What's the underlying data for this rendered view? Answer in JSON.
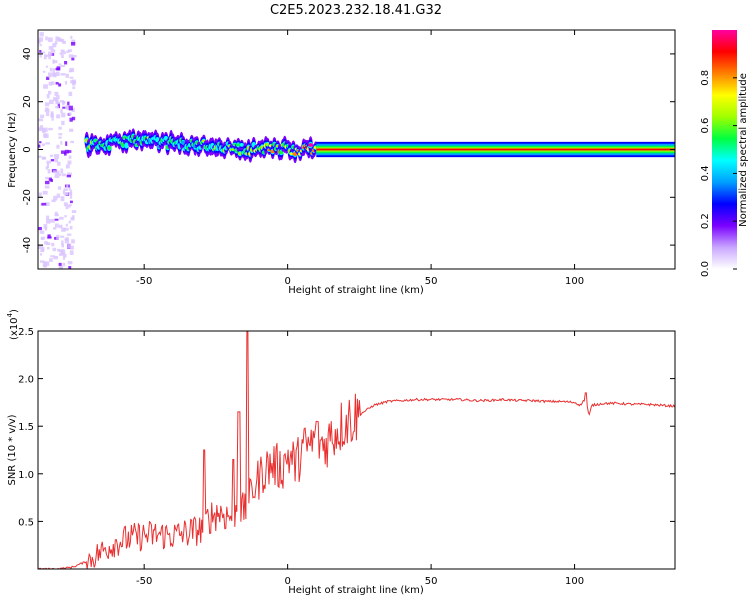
{
  "figure_title": "C2E5.2023.232.18.41.G32",
  "chart_data": [
    {
      "type": "heatmap",
      "name": "spectrogram",
      "xlabel": "Height of straight line (km)",
      "ylabel": "Frequency (Hz)",
      "xlim": [
        -87,
        135
      ],
      "ylim": [
        -50,
        50
      ],
      "xticks": [
        -50,
        0,
        50,
        100
      ],
      "yticks": [
        -40,
        -20,
        0,
        20,
        40
      ],
      "colorbar": {
        "label": "Normalized spectral amplitude",
        "range": [
          0,
          1
        ],
        "ticks": [
          "0.0",
          "0.2",
          "0.4",
          "0.6",
          "0.8"
        ],
        "colormap": [
          "#ffffff",
          "#c9a6ff",
          "#7a00ff",
          "#0000ff",
          "#00a0ff",
          "#00ffff",
          "#00ff40",
          "#a0ff00",
          "#ffff00",
          "#ff8000",
          "#ff0000",
          "#ff00a0"
        ]
      },
      "ridge": [
        {
          "x": -62,
          "f": 2,
          "amp": 0.6
        },
        {
          "x": -55,
          "f": 4,
          "amp": 0.55
        },
        {
          "x": -45,
          "f": 3,
          "amp": 0.55
        },
        {
          "x": -35,
          "f": 2,
          "amp": 0.55
        },
        {
          "x": -25,
          "f": 1.5,
          "amp": 0.6
        },
        {
          "x": -15,
          "f": 0,
          "amp": 0.6
        },
        {
          "x": -5,
          "f": 0.5,
          "amp": 0.75
        },
        {
          "x": 5,
          "f": 0,
          "amp": 0.8
        },
        {
          "x": 10,
          "f": 0,
          "amp": 0.95
        },
        {
          "x": 135,
          "f": 0,
          "amp": 0.95
        }
      ],
      "grid": false
    },
    {
      "type": "line",
      "name": "snr",
      "xlabel": "Height of straight line (km)",
      "ylabel": "SNR (10 * v/v)",
      "y_multiplier_label": "(x10",
      "y_multiplier_exp": "4",
      "y_multiplier_close": ")",
      "xlim": [
        -87,
        135
      ],
      "ylim": [
        0,
        2.5
      ],
      "xticks": [
        -50,
        0,
        50,
        100
      ],
      "yticks": [
        0.5,
        1.0,
        1.5,
        2.0,
        2.5
      ],
      "line_color": "#e83030",
      "x": [
        -87,
        -80,
        -75,
        -70,
        -65,
        -60,
        -55,
        -50,
        -45,
        -40,
        -35,
        -30,
        -27,
        -24,
        -20,
        -17,
        -15,
        -13,
        -12,
        -10,
        -8,
        -5,
        -2,
        0,
        3,
        5,
        8,
        10,
        13,
        15,
        18,
        20,
        23,
        25,
        28,
        30,
        35,
        40,
        45,
        50,
        55,
        60,
        65,
        70,
        75,
        80,
        85,
        90,
        95,
        100,
        102,
        104,
        105,
        106,
        110,
        115,
        120,
        125,
        130,
        135
      ],
      "y": [
        0.0,
        0.0,
        0.02,
        0.08,
        0.18,
        0.28,
        0.32,
        0.35,
        0.36,
        0.35,
        0.38,
        0.42,
        0.55,
        0.6,
        0.55,
        0.65,
        0.6,
        0.75,
        0.85,
        0.95,
        1.05,
        1.1,
        1.05,
        1.2,
        1.1,
        1.25,
        1.3,
        1.35,
        1.3,
        1.4,
        1.48,
        1.55,
        1.6,
        1.62,
        1.68,
        1.72,
        1.76,
        1.77,
        1.78,
        1.78,
        1.78,
        1.78,
        1.77,
        1.77,
        1.78,
        1.77,
        1.77,
        1.76,
        1.76,
        1.75,
        1.72,
        1.8,
        1.6,
        1.72,
        1.74,
        1.74,
        1.73,
        1.73,
        1.72,
        1.71
      ],
      "spikes": [
        {
          "x": -14,
          "y": 2.5
        },
        {
          "x": -17,
          "y": 1.65
        },
        {
          "x": -29,
          "y": 1.25
        },
        {
          "x": -19,
          "y": 1.15
        },
        {
          "x": 10,
          "y": 1.55
        },
        {
          "x": 104,
          "y": 1.85
        }
      ],
      "grid": false
    }
  ]
}
